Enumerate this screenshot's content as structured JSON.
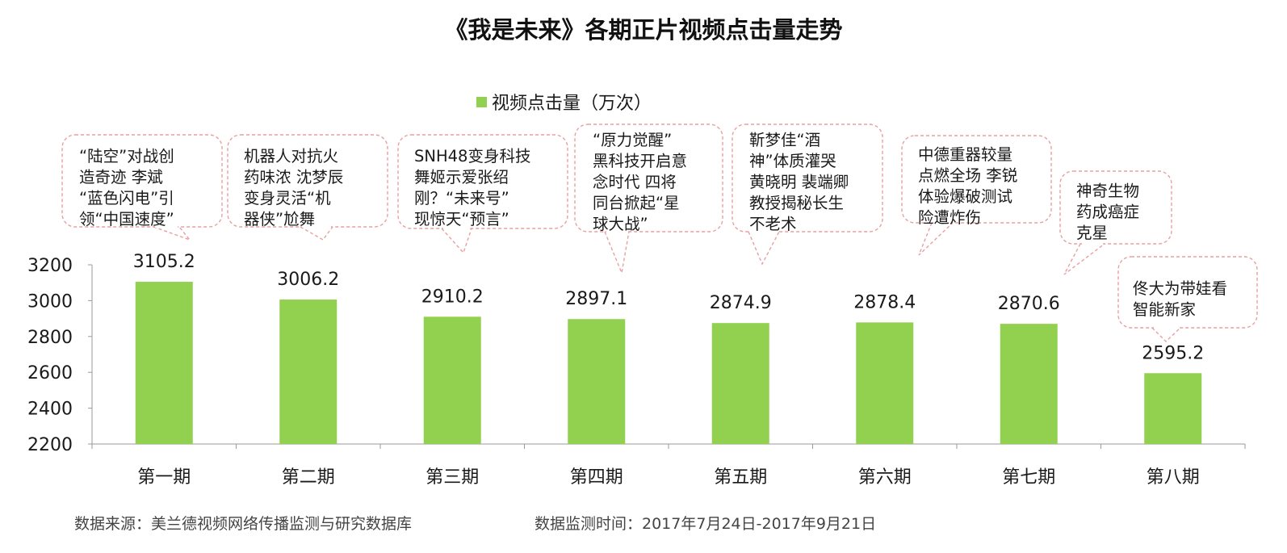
{
  "title": "《我是未来》各期正片视频点击量走势",
  "legend": {
    "label": "视频点击量（万次）",
    "color": "#92d050"
  },
  "chart_data": {
    "type": "bar",
    "title": "《我是未来》各期正片视频点击量走势",
    "categories": [
      "第一期",
      "第二期",
      "第三期",
      "第四期",
      "第五期",
      "第六期",
      "第七期",
      "第八期"
    ],
    "series": [
      {
        "name": "视频点击量（万次）",
        "values": [
          3105.2,
          3006.2,
          2910.2,
          2897.1,
          2874.9,
          2878.4,
          2870.6,
          2595.2
        ]
      }
    ],
    "value_labels": [
      "3105.2",
      "3006.2",
      "2910.2",
      "2897.1",
      "2874.9",
      "2878.4",
      "2870.6",
      "2595.2"
    ],
    "ylim": [
      2200,
      3200
    ],
    "yticks": [
      "2200",
      "2400",
      "2600",
      "2800",
      "3000",
      "3200"
    ],
    "grid": false,
    "legend_position": "top-center",
    "bar_color": "#92d050",
    "callout_border_color": "#e8a0a0",
    "annotations": [
      {
        "lines": [
          "“陆空”对战创",
          "造奇迹 李斌",
          "“蓝色闪电”引",
          "领“中国速度”"
        ]
      },
      {
        "lines": [
          "机器人对抗火",
          "药味浓 沈梦辰",
          "变身灵活“机",
          "器侠”尬舞"
        ]
      },
      {
        "lines": [
          "SNH48变身科技",
          "舞姬示爱张绍",
          "刚？“未来号”",
          "现惊天“预言”"
        ]
      },
      {
        "lines": [
          "“原力觉醒”",
          "黑科技开启意",
          "念时代 四将",
          "同台掀起“星",
          "球大战”"
        ]
      },
      {
        "lines": [
          "靳梦佳“酒",
          "神”体质灌哭",
          "黄晓明 裴端卿",
          "教授揭秘长生",
          "不老术"
        ]
      },
      {
        "lines": [
          "中德重器较量",
          "点燃全场 李锐",
          "体验爆破测试",
          "险遭炸伤"
        ]
      },
      {
        "lines": [
          "神奇生物",
          "药成癌症",
          "克星"
        ]
      },
      {
        "lines": [
          "佟大为带娃看",
          "智能新家"
        ]
      }
    ]
  },
  "footer": {
    "source": "数据来源：美兰德视频网络传播监测与研究数据库",
    "period": "数据监测时间：2017年7月24日-2017年9月21日"
  }
}
